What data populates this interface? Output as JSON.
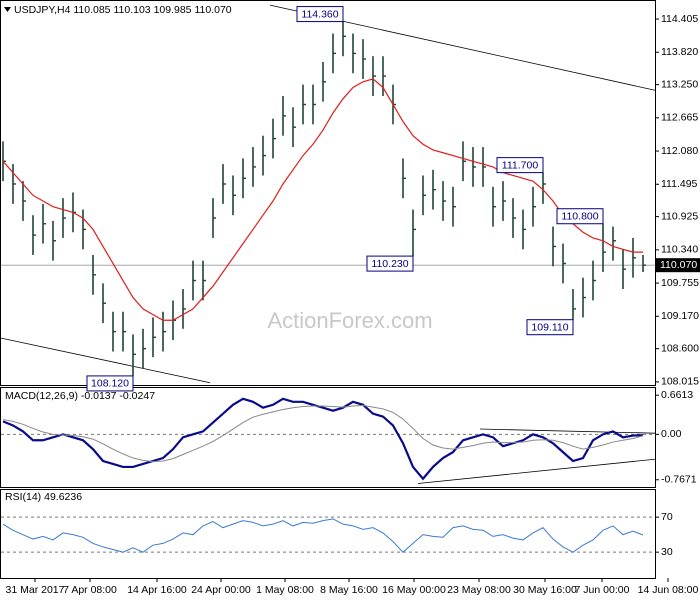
{
  "chart_data": [
    {
      "type": "ohlc",
      "symbol": "USDJPY,H4",
      "quote": [
        {
          "value": 110.085,
          "label": "110.085"
        },
        {
          "value": 110.103,
          "label": "110.103"
        },
        {
          "value": 109.985,
          "label": "109.985"
        },
        {
          "value": 110.07,
          "label": "110.070"
        }
      ],
      "watermark": "ActionForex.com",
      "xlim": [
        -0.3,
        65.2
      ],
      "ylim": [
        107.96,
        114.74
      ],
      "yticks": [
        114.405,
        {
          "value": 113.82,
          "label": "113.820"
        },
        {
          "value": 113.25,
          "label": "113.250"
        },
        112.665,
        {
          "value": 112.08,
          "label": "112.080"
        },
        111.495,
        110.925,
        {
          "value": 110.34,
          "label": "110.340"
        },
        109.755,
        {
          "value": 109.17,
          "label": "109.170"
        },
        {
          "value": 108.6,
          "label": "108.600"
        },
        108.015
      ],
      "bar_color": "#1f4436",
      "high": [
        112.25,
        111.85,
        111.55,
        110.95,
        111.15,
        110.85,
        111.25,
        111.35,
        111.05,
        110.25,
        109.75,
        109.25,
        109.25,
        108.85,
        108.95,
        109.15,
        109.25,
        109.45,
        109.65,
        110.15,
        110.15,
        111.25,
        111.85,
        111.65,
        111.95,
        112.15,
        112.35,
        112.65,
        113.05,
        112.85,
        113.25,
        113.25,
        113.65,
        114.15,
        114.36,
        114.15,
        114.05,
        113.75,
        113.75,
        113.25,
        111.95,
        111.05,
        111.65,
        111.75,
        111.55,
        111.45,
        112.25,
        112.15,
        112.15,
        111.45,
        111.55,
        111.25,
        111.05,
        111.45,
        111.7,
        110.75,
        110.45,
        109.65,
        109.85,
        110.15,
        110.8,
        110.75,
        110.35,
        110.55,
        110.25
      ],
      "low": [
        111.55,
        111.15,
        110.85,
        110.25,
        110.45,
        110.15,
        110.55,
        110.65,
        110.35,
        109.55,
        109.05,
        108.55,
        108.55,
        108.12,
        108.25,
        108.45,
        108.55,
        108.75,
        108.95,
        109.45,
        109.45,
        110.55,
        111.15,
        110.95,
        111.25,
        111.45,
        111.65,
        111.95,
        112.35,
        112.15,
        112.55,
        112.55,
        112.95,
        113.45,
        113.75,
        113.45,
        113.35,
        113.05,
        113.05,
        112.55,
        111.25,
        110.23,
        110.95,
        111.05,
        110.85,
        110.75,
        111.55,
        111.45,
        111.45,
        110.75,
        110.85,
        110.55,
        110.35,
        110.75,
        111.15,
        110.05,
        109.75,
        109.11,
        109.15,
        109.45,
        109.95,
        110.15,
        109.65,
        109.85,
        109.95
      ],
      "close": [
        111.9,
        111.5,
        111.2,
        110.6,
        110.8,
        110.5,
        110.9,
        111.0,
        110.7,
        109.9,
        109.4,
        108.9,
        108.9,
        108.5,
        108.6,
        108.8,
        108.9,
        109.1,
        109.3,
        109.8,
        109.8,
        110.9,
        111.5,
        111.3,
        111.6,
        111.8,
        112.0,
        112.3,
        112.7,
        112.5,
        112.9,
        112.9,
        113.3,
        113.8,
        114.1,
        113.8,
        113.7,
        113.4,
        113.4,
        112.9,
        111.6,
        110.7,
        111.3,
        111.4,
        111.2,
        111.1,
        111.9,
        111.8,
        111.8,
        111.1,
        111.2,
        110.9,
        110.7,
        111.1,
        111.5,
        110.4,
        110.1,
        109.3,
        109.5,
        109.8,
        110.3,
        110.5,
        110.0,
        110.2,
        110.07
      ],
      "ma": {
        "color": "#e01c1c",
        "values": [
          111.9,
          111.7,
          111.5,
          111.3,
          111.2,
          111.1,
          111.05,
          111.0,
          110.9,
          110.7,
          110.4,
          110.1,
          109.8,
          109.5,
          109.3,
          109.2,
          109.1,
          109.1,
          109.2,
          109.3,
          109.5,
          109.7,
          109.95,
          110.2,
          110.45,
          110.7,
          110.95,
          111.2,
          111.5,
          111.75,
          112.0,
          112.2,
          112.45,
          112.75,
          113.0,
          113.2,
          113.3,
          113.35,
          113.2,
          112.9,
          112.6,
          112.35,
          112.2,
          112.1,
          112.05,
          112.0,
          111.95,
          111.9,
          111.85,
          111.8,
          111.7,
          111.65,
          111.6,
          111.55,
          111.4,
          111.2,
          110.95,
          110.8,
          110.65,
          110.55,
          110.5,
          110.4,
          110.35,
          110.3,
          110.3
        ]
      },
      "annotations": [
        {
          "bar": 34,
          "value": 114.36,
          "label": "114.360",
          "placement": "above"
        },
        {
          "bar": 13,
          "value": 108.12,
          "label": "108.120",
          "placement": "below"
        },
        {
          "bar": 41,
          "value": 110.23,
          "label": "110.230",
          "placement": "below"
        },
        {
          "bar": 54,
          "value": 111.7,
          "label": "111.700",
          "placement": "above"
        },
        {
          "bar": 60,
          "value": 110.8,
          "label": "110.800",
          "placement": "above"
        },
        {
          "bar": 57,
          "value": 109.11,
          "label": "109.110",
          "placement": "below"
        }
      ],
      "trendlines": [
        [
          [
            26.7,
            114.65
          ],
          [
            65.2,
            113.15
          ]
        ],
        [
          [
            -0.3,
            108.79
          ],
          [
            20.7,
            108.0
          ]
        ]
      ]
    },
    {
      "type": "line",
      "title": "MACD(12,26,9)",
      "xlim": [
        -0.3,
        65.2
      ],
      "ylim": [
        -0.906,
        0.8
      ],
      "yticks": [
        0.6613,
        {
          "value": 0,
          "label": "0.00"
        },
        -0.7671
      ],
      "levels": [
        0
      ],
      "series": [
        {
          "color": "#0a0a8c",
          "width": 2.2,
          "values": [
            0.22,
            0.15,
            0.05,
            -0.1,
            -0.1,
            -0.05,
            0.0,
            -0.05,
            -0.1,
            -0.25,
            -0.45,
            -0.5,
            -0.55,
            -0.55,
            -0.5,
            -0.45,
            -0.4,
            -0.25,
            -0.05,
            0.0,
            0.05,
            0.2,
            0.35,
            0.5,
            0.6,
            0.55,
            0.45,
            0.5,
            0.6,
            0.55,
            0.55,
            0.5,
            0.45,
            0.4,
            0.45,
            0.55,
            0.5,
            0.35,
            0.3,
            0.15,
            -0.15,
            -0.55,
            -0.75,
            -0.55,
            -0.4,
            -0.3,
            -0.1,
            -0.05,
            0.0,
            -0.05,
            -0.2,
            -0.15,
            -0.1,
            0.0,
            -0.05,
            -0.15,
            -0.3,
            -0.45,
            -0.4,
            -0.1,
            0.0,
            0.05,
            -0.05,
            -0.02,
            -0.0137
          ]
        },
        {
          "color": "#888888",
          "width": 1,
          "values": [
            0.25,
            0.22,
            0.17,
            0.1,
            0.04,
            0.0,
            -0.01,
            -0.02,
            -0.04,
            -0.08,
            -0.16,
            -0.25,
            -0.33,
            -0.4,
            -0.44,
            -0.46,
            -0.45,
            -0.41,
            -0.34,
            -0.27,
            -0.2,
            -0.12,
            -0.02,
            0.09,
            0.2,
            0.29,
            0.34,
            0.38,
            0.42,
            0.45,
            0.47,
            0.48,
            0.48,
            0.47,
            0.46,
            0.48,
            0.49,
            0.46,
            0.43,
            0.37,
            0.26,
            0.1,
            -0.07,
            -0.18,
            -0.23,
            -0.25,
            -0.22,
            -0.19,
            -0.15,
            -0.13,
            -0.14,
            -0.14,
            -0.13,
            -0.1,
            -0.09,
            -0.1,
            -0.14,
            -0.2,
            -0.25,
            -0.22,
            -0.18,
            -0.13,
            -0.1,
            -0.07,
            -0.0247
          ]
        }
      ],
      "trendlines": [
        [
          [
            47.7,
            0.09
          ],
          [
            65.2,
            0.02
          ]
        ],
        [
          [
            41.5,
            -0.83
          ],
          [
            65.2,
            -0.42
          ]
        ]
      ]
    },
    {
      "type": "line",
      "title": "RSI(14)",
      "xlim": [
        -0.3,
        65.2
      ],
      "ylim": [
        0.5,
        101
      ],
      "yticks": [
        70,
        30
      ],
      "levels": [
        70,
        30
      ],
      "series": [
        {
          "color": "#3a7bd5",
          "width": 1,
          "values": [
            62,
            55,
            50,
            45,
            48,
            44,
            52,
            50,
            47,
            40,
            36,
            33,
            30,
            35,
            30,
            38,
            40,
            45,
            52,
            50,
            60,
            65,
            58,
            62,
            66,
            64,
            60,
            62,
            66,
            60,
            64,
            63,
            66,
            68,
            62,
            60,
            56,
            58,
            52,
            42,
            30,
            40,
            50,
            48,
            47,
            58,
            60,
            56,
            55,
            48,
            50,
            46,
            44,
            52,
            58,
            45,
            36,
            30,
            38,
            44,
            55,
            60,
            50,
            54,
            49.6236
          ]
        }
      ],
      "xticks": [
        {
          "value": 3.2,
          "label": "31 Mar 2017"
        },
        {
          "value": 8.7,
          "label": "7 Apr 08:00"
        },
        {
          "value": 15.4,
          "label": "14 Apr 16:00"
        },
        {
          "value": 21.8,
          "label": "24 Apr 00:00"
        },
        {
          "value": 28.2,
          "label": "1 May 08:00"
        },
        {
          "value": 34.6,
          "label": "8 May 16:00"
        },
        {
          "value": 41.1,
          "label": "16 May 00:00"
        },
        {
          "value": 47.6,
          "label": "23 May 08:00"
        },
        {
          "value": 54.2,
          "label": "30 May 16:00"
        },
        {
          "value": 59.9,
          "label": "7 Jun 00:00"
        },
        {
          "value": 66.5,
          "label": "14 Jun 08:00"
        }
      ]
    }
  ]
}
